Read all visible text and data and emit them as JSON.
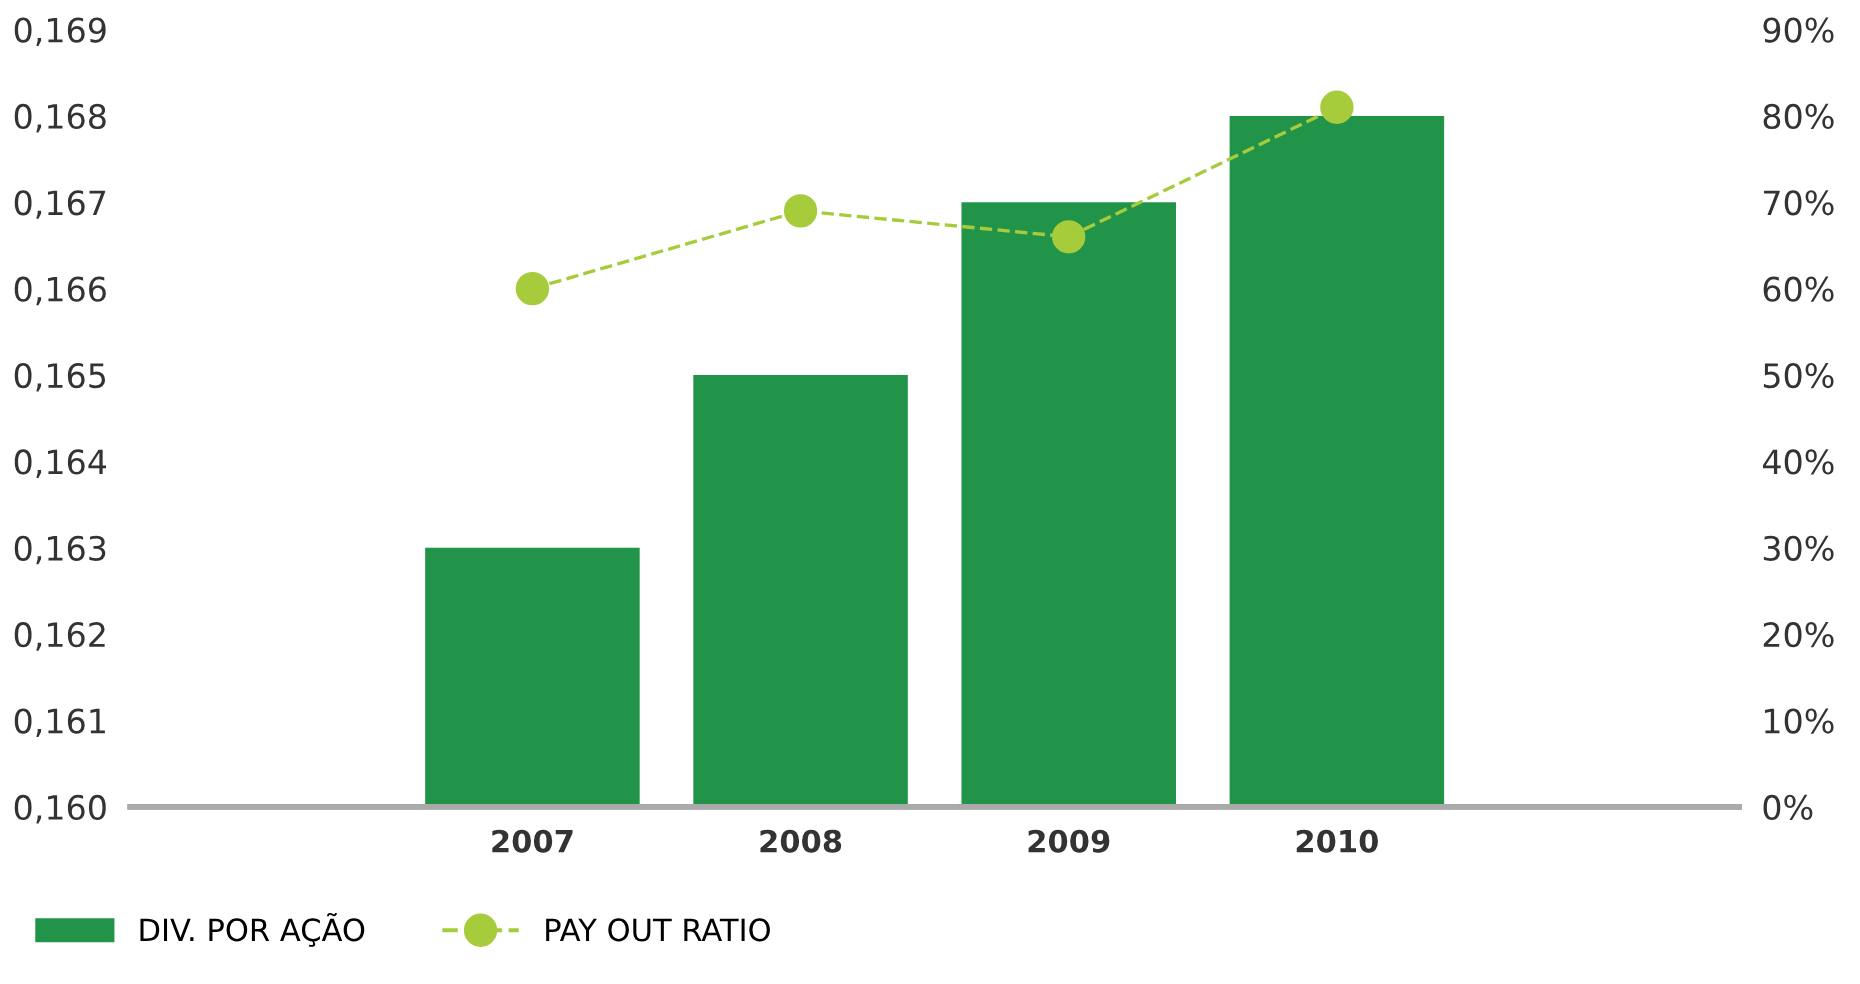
{
  "chart_data": {
    "type": "bar",
    "categories": [
      "2007",
      "2008",
      "2009",
      "2010"
    ],
    "series": [
      {
        "name": "DIV. POR AÇÃO",
        "color": "#22944a",
        "values": [
          0.163,
          0.165,
          0.167,
          0.168
        ]
      },
      {
        "name": "PAY OUT RATIO",
        "type": "line",
        "axis": "y2",
        "color": "#a6cc3c",
        "marker": "circle",
        "line_style": "dashed",
        "values": [
          60,
          69,
          66,
          81
        ]
      }
    ],
    "ylim": [
      0.16,
      0.169
    ],
    "yticks": [
      {
        "value": 0.16,
        "label": "0,160"
      },
      {
        "value": 0.161,
        "label": "0,161"
      },
      {
        "value": 0.162,
        "label": "0,162"
      },
      {
        "value": 0.163,
        "label": "0,163"
      },
      {
        "value": 0.164,
        "label": "0,164"
      },
      {
        "value": 0.165,
        "label": "0,165"
      },
      {
        "value": 0.166,
        "label": "0,166"
      },
      {
        "value": 0.167,
        "label": "0,167"
      },
      {
        "value": 0.168,
        "label": "0,168"
      },
      {
        "value": 0.169,
        "label": "0,169"
      }
    ],
    "y2lim": [
      0,
      90
    ],
    "y2ticks": [
      {
        "value": 0,
        "label": "0%"
      },
      {
        "value": 10,
        "label": "10%"
      },
      {
        "value": 20,
        "label": "20%"
      },
      {
        "value": 30,
        "label": "30%"
      },
      {
        "value": 40,
        "label": "40%"
      },
      {
        "value": 50,
        "label": "50%"
      },
      {
        "value": 60,
        "label": "60%"
      },
      {
        "value": 70,
        "label": "70%"
      },
      {
        "value": 80,
        "label": "80%"
      },
      {
        "value": 90,
        "label": "90%"
      }
    ],
    "grid": false,
    "legend": "bottom left"
  }
}
